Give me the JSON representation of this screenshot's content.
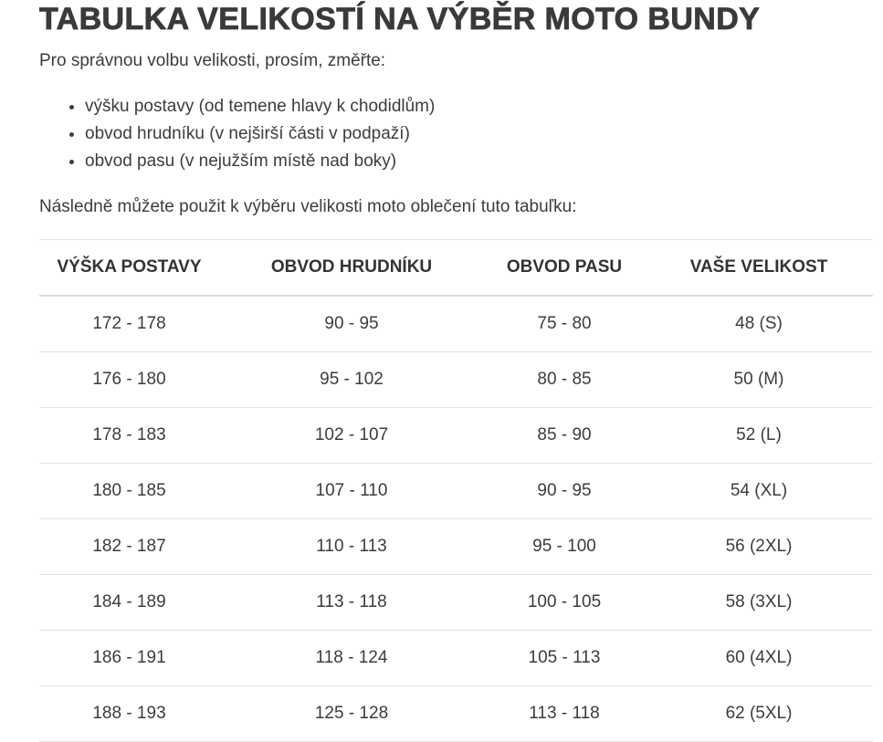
{
  "title": "TABULKA VELIKOSTÍ NA VÝBĚR MOTO BUNDY",
  "intro": "Pro správnou volbu velikosti, prosím, změřte:",
  "measurements": [
    "výšku postavy (od temene hlavy k chodidlům)",
    "obvod hrudníku (v nejširší části v podpaží)",
    "obvod pasu (v nejužším místě nad boky)"
  ],
  "after_text": "Následně můžete použit k výběru velikosti moto oblečení tuto tabuľku:",
  "table": {
    "headers": [
      "VÝŠKA POSTAVY",
      "OBVOD HRUDNÍKU",
      "OBVOD PASU",
      "VAŠE VELIKOST"
    ],
    "rows": [
      [
        "172 - 178",
        "90 - 95",
        "75 - 80",
        "48 (S)"
      ],
      [
        "176 - 180",
        "95 - 102",
        "80 - 85",
        "50 (M)"
      ],
      [
        "178 - 183",
        "102 - 107",
        "85 - 90",
        "52 (L)"
      ],
      [
        "180 - 185",
        "107 - 110",
        "90 - 95",
        "54 (XL)"
      ],
      [
        "182 - 187",
        "110 - 113",
        "95 - 100",
        "56 (2XL)"
      ],
      [
        "184 - 189",
        "113 - 118",
        "100 - 105",
        "58 (3XL)"
      ],
      [
        "186 - 191",
        "118 - 124",
        "105 - 113",
        "60 (4XL)"
      ],
      [
        "188 - 193",
        "125 - 128",
        "113 - 118",
        "62 (5XL)"
      ]
    ]
  }
}
